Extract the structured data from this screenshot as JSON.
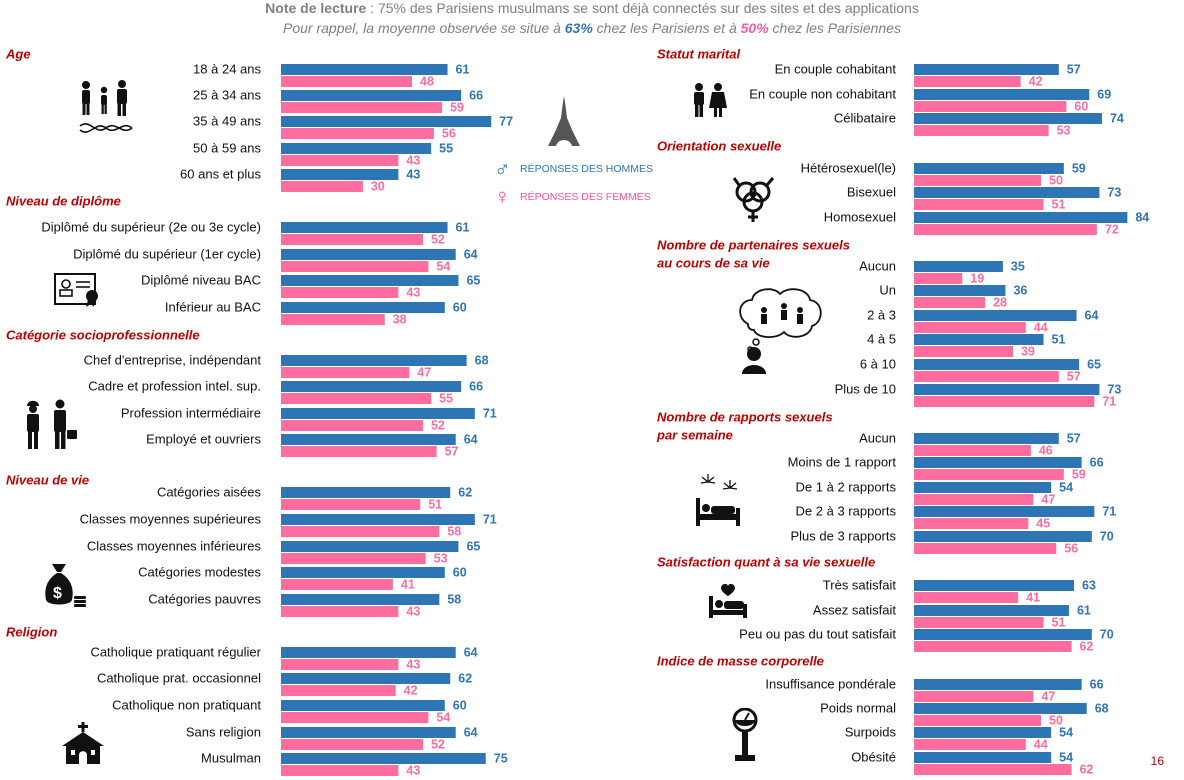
{
  "header": {
    "reading_note_label": "Note de lecture",
    "reading_note_text": " : 75% des Parisiens musulmans se sont déjà connectés sur des sites et des applications",
    "reminder_prefix": "Pour rappel, la moyenne observée se situe à ",
    "reminder_men_value": "63%",
    "reminder_mid": " chez les Parisiens et à ",
    "reminder_women_value": "50%",
    "reminder_suffix": " chez les Parisiennes"
  },
  "legend": {
    "men_label": "RÉPONSES DES HOMMES",
    "women_label": "RÉPONSES DES FEMMES"
  },
  "colors": {
    "men": "#2e75b6",
    "women": "#ff6ca0",
    "section_title": "#c00000"
  },
  "page_number": "16",
  "chart_data": {
    "type": "bar",
    "orientation": "horizontal",
    "xlim": [
      0,
      100
    ],
    "grid": false,
    "series_names": [
      "RÉPONSES DES HOMMES",
      "RÉPONSES DES FEMMES"
    ],
    "sections": [
      {
        "title": "Age",
        "categories": [
          "18 à 24 ans",
          "25 à 34 ans",
          "35 à 49 ans",
          "50 à 59 ans",
          "60 ans et plus"
        ],
        "men": [
          61,
          66,
          77,
          55,
          43
        ],
        "women": [
          48,
          59,
          56,
          43,
          30
        ]
      },
      {
        "title": "Niveau de diplôme",
        "categories": [
          "Diplômé du supérieur (2e ou 3e cycle)",
          "Diplômé du supérieur (1er cycle)",
          "Diplômé niveau BAC",
          "Inférieur au BAC"
        ],
        "men": [
          61,
          64,
          65,
          60
        ],
        "women": [
          52,
          54,
          43,
          38
        ]
      },
      {
        "title": "Catégorie socioprofessionnelle",
        "categories": [
          "Chef d'entreprise, indépendant",
          "Cadre et profession intel. sup.",
          "Profession intermédiaire",
          "Employé et ouvriers"
        ],
        "men": [
          68,
          66,
          71,
          64
        ],
        "women": [
          47,
          55,
          52,
          57
        ]
      },
      {
        "title": "Niveau de vie",
        "categories": [
          "Catégories aisées",
          "Classes moyennes supérieures",
          "Classes moyennes inférieures",
          "Catégories modestes",
          "Catégories pauvres"
        ],
        "men": [
          62,
          71,
          65,
          60,
          58
        ],
        "women": [
          51,
          58,
          53,
          41,
          43
        ]
      },
      {
        "title": "Religion",
        "categories": [
          "Catholique pratiquant régulier",
          "Catholique prat. occasionnel",
          "Catholique non pratiquant",
          "Sans religion",
          "Musulman"
        ],
        "men": [
          64,
          62,
          60,
          64,
          75
        ],
        "women": [
          43,
          42,
          54,
          52,
          43
        ]
      },
      {
        "title": "Statut marital",
        "categories": [
          "En couple cohabitant",
          "En couple non cohabitant",
          "Célibataire"
        ],
        "men": [
          57,
          69,
          74
        ],
        "women": [
          42,
          60,
          53
        ]
      },
      {
        "title": "Orientation sexuelle",
        "categories": [
          "Hétérosexuel(le)",
          "Bisexuel",
          "Homosexuel"
        ],
        "men": [
          59,
          73,
          84
        ],
        "women": [
          50,
          51,
          72
        ]
      },
      {
        "title": "Nombre de partenaires sexuels\nau cours de sa vie",
        "categories": [
          "Aucun",
          "Un",
          "2 à 3",
          "4 à 5",
          "6 à 10",
          "Plus de 10"
        ],
        "men": [
          35,
          36,
          64,
          51,
          65,
          73
        ],
        "women": [
          19,
          28,
          44,
          39,
          57,
          71
        ]
      },
      {
        "title": "Nombre de rapports sexuels\npar semaine",
        "categories": [
          "Aucun",
          "Moins de 1 rapport",
          "De 1 à 2 rapports",
          "De 2 à 3 rapports",
          "Plus de 3 rapports"
        ],
        "men": [
          57,
          66,
          54,
          71,
          70
        ],
        "women": [
          46,
          59,
          47,
          45,
          56
        ]
      },
      {
        "title": "Satisfaction quant à sa vie sexuelle",
        "categories": [
          "Très satisfait",
          "Assez satisfait",
          "Peu ou pas du tout satisfait"
        ],
        "men": [
          63,
          61,
          70
        ],
        "women": [
          41,
          51,
          62
        ]
      },
      {
        "title": "Indice de masse corporelle",
        "categories": [
          "Insuffisance pondérale",
          "Poids normal",
          "Surpoids",
          "Obésité"
        ],
        "men": [
          66,
          68,
          54,
          54
        ],
        "women": [
          47,
          50,
          44,
          62
        ]
      }
    ]
  },
  "icons": [
    "family-dna-icon",
    "diploma-icon",
    "workers-icon",
    "money-bag-icon",
    "church-icon",
    "eiffel-tower-icon",
    "male-symbol-icon",
    "female-symbol-icon",
    "couple-icon",
    "gender-symbols-icon",
    "thinking-person-icon",
    "bed-fireworks-icon",
    "bed-heart-icon",
    "scale-icon"
  ]
}
